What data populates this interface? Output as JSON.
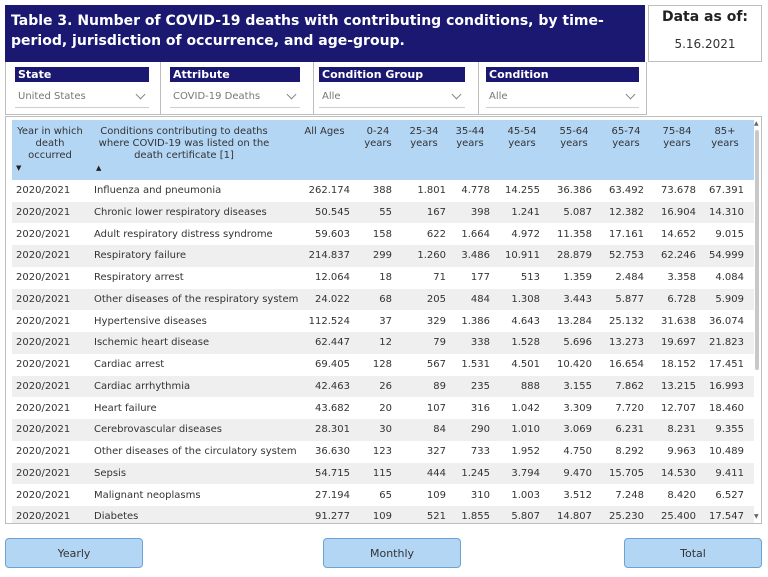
{
  "title": "Table 3. Number of COVID-19 deaths with contributing conditions, by time-period, jurisdiction of occurrence, and age-group.",
  "as_of": {
    "label": "Data as of:",
    "date": "5.16.2021"
  },
  "filters": [
    {
      "label": "State",
      "value": "United States"
    },
    {
      "label": "Attribute",
      "value": "COVID-19 Deaths"
    },
    {
      "label": "Condition Group",
      "value": "Alle"
    },
    {
      "label": "Condition",
      "value": "Alle"
    }
  ],
  "table": {
    "headers": {
      "year": "Year in which death occurred",
      "condition": "Conditions contributing to deaths where COVID-19 was listed on the death certificate [1]",
      "all": "All Ages",
      "a0_24": "0-24 years",
      "a25_34": "25-34 years",
      "a35_44": "35-44 years",
      "a45_54": "45-54 years",
      "a55_64": "55-64 years",
      "a65_74": "65-74 years",
      "a75_84": "75-84 years",
      "a85": "85+ years"
    },
    "rows": [
      [
        "2020/2021",
        "Influenza and pneumonia",
        "262.174",
        "388",
        "1.801",
        "4.778",
        "14.255",
        "36.386",
        "63.492",
        "73.678",
        "67.391"
      ],
      [
        "2020/2021",
        "Chronic lower respiratory diseases",
        "50.545",
        "55",
        "167",
        "398",
        "1.241",
        "5.087",
        "12.382",
        "16.904",
        "14.310"
      ],
      [
        "2020/2021",
        "Adult respiratory distress syndrome",
        "59.603",
        "158",
        "622",
        "1.664",
        "4.972",
        "11.358",
        "17.161",
        "14.652",
        "9.015"
      ],
      [
        "2020/2021",
        "Respiratory failure",
        "214.837",
        "299",
        "1.260",
        "3.486",
        "10.911",
        "28.879",
        "52.753",
        "62.246",
        "54.999"
      ],
      [
        "2020/2021",
        "Respiratory arrest",
        "12.064",
        "18",
        "71",
        "177",
        "513",
        "1.359",
        "2.484",
        "3.358",
        "4.084"
      ],
      [
        "2020/2021",
        "Other diseases of the respiratory system",
        "24.022",
        "68",
        "205",
        "484",
        "1.308",
        "3.443",
        "5.877",
        "6.728",
        "5.909"
      ],
      [
        "2020/2021",
        "Hypertensive diseases",
        "112.524",
        "37",
        "329",
        "1.386",
        "4.643",
        "13.284",
        "25.132",
        "31.638",
        "36.074"
      ],
      [
        "2020/2021",
        "Ischemic heart disease",
        "62.447",
        "12",
        "79",
        "338",
        "1.528",
        "5.696",
        "13.273",
        "19.697",
        "21.823"
      ],
      [
        "2020/2021",
        "Cardiac arrest",
        "69.405",
        "128",
        "567",
        "1.531",
        "4.501",
        "10.420",
        "16.654",
        "18.152",
        "17.451"
      ],
      [
        "2020/2021",
        "Cardiac arrhythmia",
        "42.463",
        "26",
        "89",
        "235",
        "888",
        "3.155",
        "7.862",
        "13.215",
        "16.993"
      ],
      [
        "2020/2021",
        "Heart failure",
        "43.682",
        "20",
        "107",
        "316",
        "1.042",
        "3.309",
        "7.720",
        "12.707",
        "18.460"
      ],
      [
        "2020/2021",
        "Cerebrovascular diseases",
        "28.301",
        "30",
        "84",
        "290",
        "1.010",
        "3.069",
        "6.231",
        "8.231",
        "9.355"
      ],
      [
        "2020/2021",
        "Other diseases of the circulatory system",
        "36.630",
        "123",
        "327",
        "733",
        "1.952",
        "4.750",
        "8.292",
        "9.963",
        "10.489"
      ],
      [
        "2020/2021",
        "Sepsis",
        "54.715",
        "115",
        "444",
        "1.245",
        "3.794",
        "9.470",
        "15.705",
        "14.530",
        "9.411"
      ],
      [
        "2020/2021",
        "Malignant neoplasms",
        "27.194",
        "65",
        "109",
        "310",
        "1.003",
        "3.512",
        "7.248",
        "8.420",
        "6.527"
      ],
      [
        "2020/2021",
        "Diabetes",
        "91.277",
        "109",
        "521",
        "1.855",
        "5.807",
        "14.807",
        "25.230",
        "25.400",
        "17.547"
      ]
    ]
  },
  "buttons": {
    "yearly": "Yearly",
    "monthly": "Monthly",
    "total": "Total"
  }
}
